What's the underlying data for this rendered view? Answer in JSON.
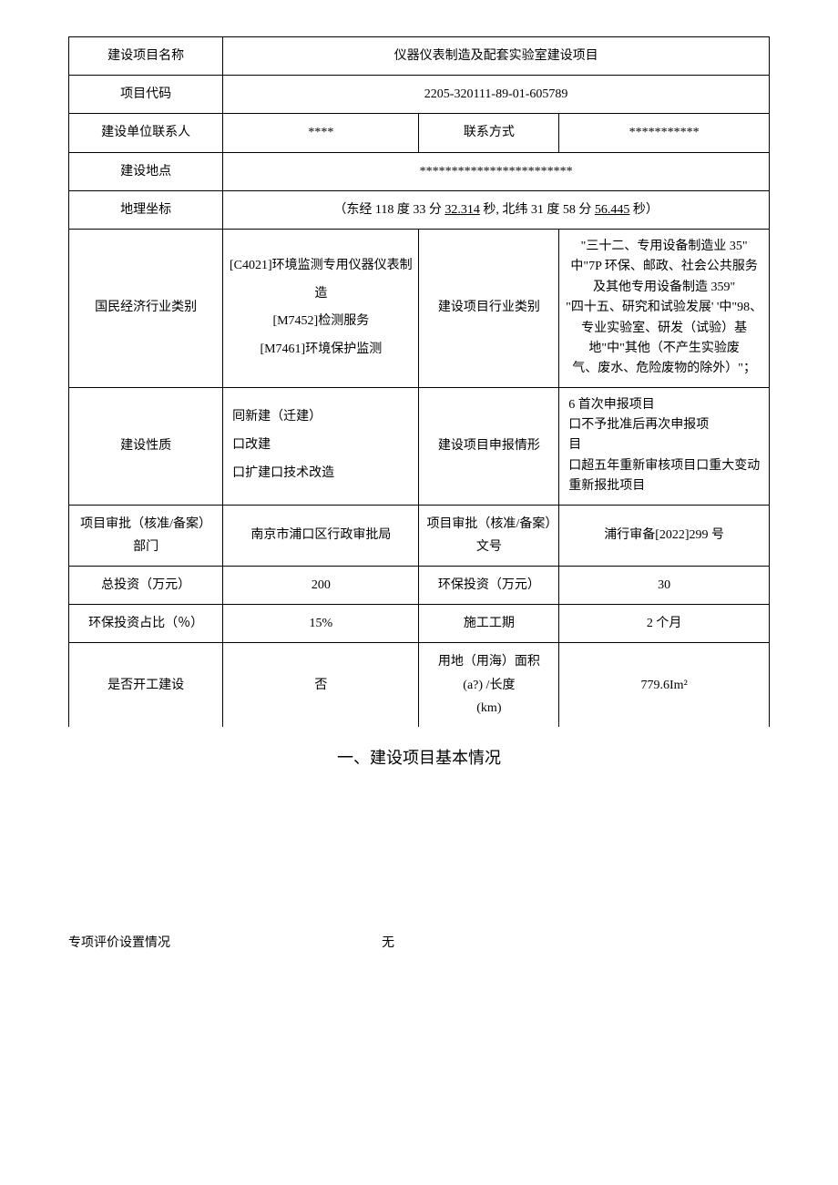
{
  "rows": {
    "project_name": {
      "label": "建设项目名称",
      "value": "仪器仪表制造及配套实验室建设项目"
    },
    "project_code": {
      "label": "项目代码",
      "value": "2205-320111-89-01-605789"
    },
    "contact": {
      "label": "建设单位联系人",
      "value": "****",
      "method_label": "联系方式",
      "method_value": "***********"
    },
    "address": {
      "label": "建设地点",
      "value": "************************"
    },
    "geo": {
      "label": "地理坐标",
      "prefix": "（东经 118 度 33 分 ",
      "sec1": "32.314",
      "mid": " 秒, 北纬 31 度 58 分 ",
      "sec2": "56.445",
      "suffix": " 秒）"
    },
    "industry": {
      "left_label": "国民经济行业类别",
      "left_value": "[C4021]环境监测专用仪器仪表制造\n[M7452]检测服务\n[M7461]环境保护监测",
      "right_label": "建设项目行业类别",
      "right_value": "\"三十二、专用设备制造业 35\"\n中\"7P 环保、邮政、社会公共服务及其他专用设备制造 359\"\n\"四十五、研究和试验发展' '中\"98、专业实验室、研发（试验）基地\"中\"其他（不产生实验废\n气、废水、危险废物的除外）\"；"
    },
    "nature": {
      "left_label": "建设性质",
      "left_value": "囘新建（迁建）\n口改建\n口扩建口技术改造",
      "right_label": "建设项目申报情形",
      "right_value": "6 首次申报项目\n口不予批准后再次申报项\n目\n口超五年重新审核项目口重大变动重新报批项目"
    },
    "approval_dept": {
      "left_label": "项目审批（核准/备案）部门",
      "left_value": "南京市浦口区行政审批局",
      "right_label": "项目审批（核准/备案）文号",
      "right_value": "浦行审备[2022]299 号"
    },
    "investment": {
      "left_label": "总投资（万元）",
      "left_value": "200",
      "right_label": "环保投资（万元）",
      "right_value": "30"
    },
    "ratio": {
      "left_label": "环保投资占比（％）",
      "left_value": "15%",
      "right_label": "施工工期",
      "right_value": "2 个月"
    },
    "construction": {
      "left_label": "是否开工建设",
      "left_value": "否",
      "right_label": "用地（用海）面积\n(a?) /长度\n(km)",
      "right_value": "779.6Im²"
    }
  },
  "section_title": "一、建设项目基本情况",
  "footer": {
    "left": "专项评价设置情况",
    "right": "无"
  }
}
